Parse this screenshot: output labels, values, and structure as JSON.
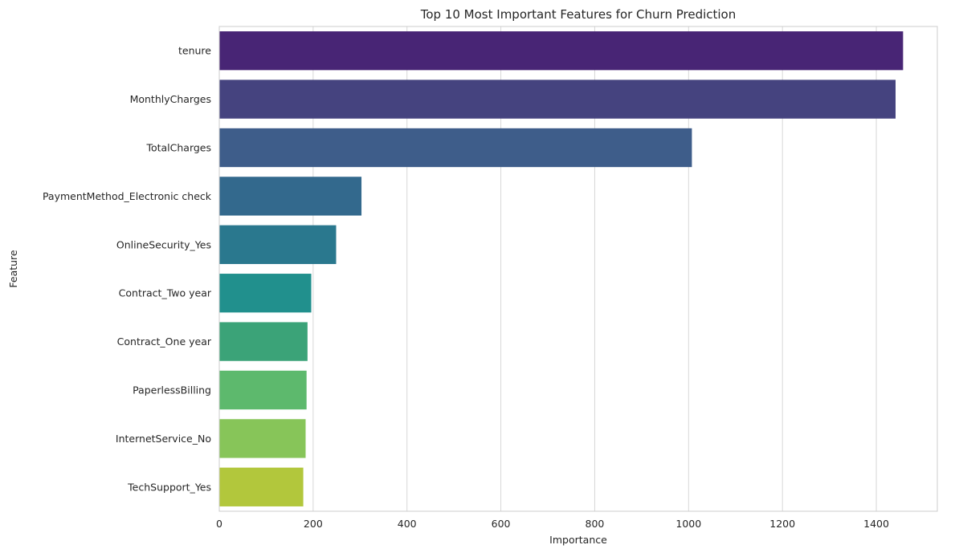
{
  "chart_data": {
    "type": "bar",
    "orientation": "horizontal",
    "title": "Top 10 Most Important Features for Churn Prediction",
    "xlabel": "Importance",
    "ylabel": "Feature",
    "categories": [
      "tenure",
      "MonthlyCharges",
      "TotalCharges",
      "PaymentMethod_Electronic check",
      "OnlineSecurity_Yes",
      "Contract_Two year",
      "Contract_One year",
      "PaperlessBilling",
      "InternetService_No",
      "TechSupport_Yes"
    ],
    "values": [
      1457,
      1441,
      1007,
      303,
      249,
      196,
      188,
      186,
      184,
      179
    ],
    "colors": [
      "#482575",
      "#45437f",
      "#3e5d8a",
      "#33698d",
      "#2a788e",
      "#21908d",
      "#3ba378",
      "#5db96d",
      "#87c559",
      "#b2c73c"
    ],
    "xlim": [
      0,
      1530
    ],
    "xticks": [
      0,
      200,
      400,
      600,
      800,
      1000,
      1200,
      1400
    ],
    "grid": "x",
    "legend": "none"
  }
}
